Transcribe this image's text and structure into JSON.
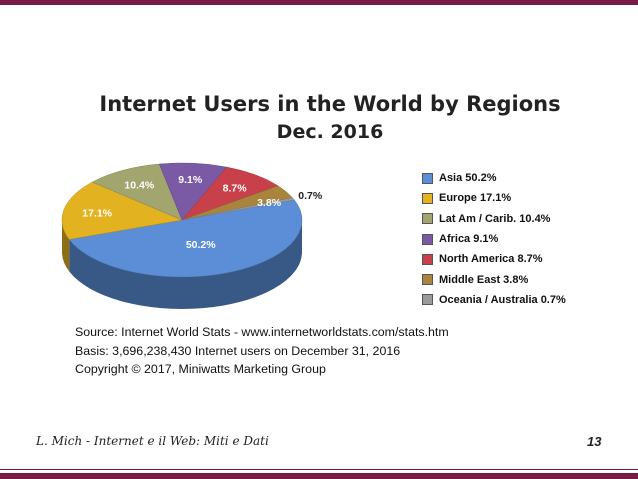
{
  "slide": {
    "author_line": "L. Mich  - Internet e il Web: Miti e Dati",
    "page_number": "13",
    "accent_color": "#7a1b45"
  },
  "chart_data": {
    "type": "pie",
    "title": "Internet Users in the World by Regions",
    "subtitle": "Dec. 2016",
    "categories": [
      "Asia",
      "Europe",
      "Lat Am / Carib.",
      "Africa",
      "North America",
      "Middle East",
      "Oceania / Australia"
    ],
    "values": [
      50.2,
      17.1,
      10.4,
      9.1,
      8.7,
      3.8,
      0.7
    ],
    "data_labels": [
      "50.2%",
      "17.1%",
      "10.4%",
      "9.1%",
      "8.7%",
      "3.8%",
      "0.7%"
    ],
    "legend": [
      "Asia  50.2%",
      "Europe  17.1%",
      "Lat Am / Carib.  10.4%",
      "Africa 9.1%",
      "North America  8.7%",
      "Middle East  3.8%",
      "Oceania / Australia  0.7%"
    ],
    "colors": [
      "#5b8ed6",
      "#e3b220",
      "#a3a56e",
      "#7a5aa5",
      "#c8414a",
      "#a9843d",
      "#9a9a9a"
    ],
    "legend_position": "right"
  },
  "source": {
    "line1": "Source: Internet World Stats -  www.internetworldstats.com/stats.htm",
    "line2": "Basis: 3,696,238,430 Internet users on December 31, 2016",
    "line3": "Copyright © 2017, Miniwatts Marketing Group"
  }
}
